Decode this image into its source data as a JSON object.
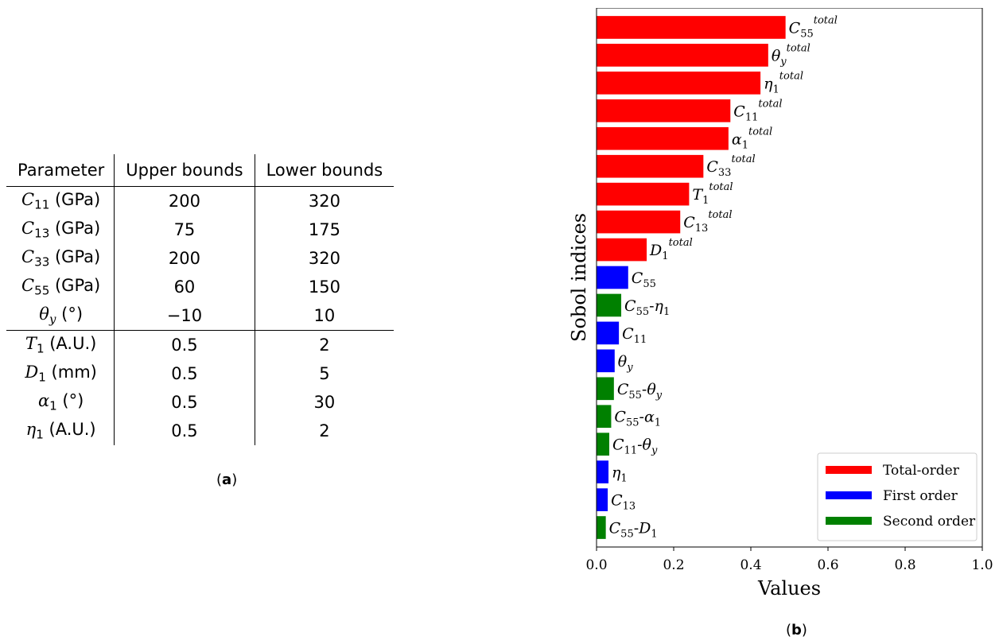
{
  "table": {
    "headers": [
      "Parameter",
      "Upper bounds",
      "Lower bounds"
    ],
    "rows": [
      {
        "sym": "C",
        "sub": "11",
        "unit": " (GPa)",
        "upper": "200",
        "lower": "320"
      },
      {
        "sym": "C",
        "sub": "13",
        "unit": " (GPa)",
        "upper": "75",
        "lower": "175"
      },
      {
        "sym": "C",
        "sub": "33",
        "unit": " (GPa)",
        "upper": "200",
        "lower": "320"
      },
      {
        "sym": "C",
        "sub": "55",
        "unit": " (GPa)",
        "upper": "60",
        "lower": "150"
      },
      {
        "sym": "θ",
        "sub": "y",
        "unit": " (°)",
        "upper": "−10",
        "lower": "10"
      },
      {
        "sym": "T",
        "sub": "1",
        "unit": " (A.U.)",
        "upper": "0.5",
        "lower": "2"
      },
      {
        "sym": "D",
        "sub": "1",
        "unit": " (mm)",
        "upper": "0.5",
        "lower": "5"
      },
      {
        "sym": "α",
        "sub": "1",
        "unit": " (°)",
        "upper": "0.5",
        "lower": "30"
      },
      {
        "sym": "η",
        "sub": "1",
        "unit": " (A.U.)",
        "upper": "0.5",
        "lower": "2"
      }
    ],
    "caption_open": "(",
    "caption_letter": "a",
    "caption_close": ")"
  },
  "chart_data": {
    "type": "bar",
    "orientation": "horizontal",
    "ylabel": "Sobol indices",
    "xlabel": "Values",
    "xlim": [
      0.0,
      1.0
    ],
    "xticks": [
      "0.0",
      "0.2",
      "0.4",
      "0.6",
      "0.8",
      "1.0"
    ],
    "grid": false,
    "legend_position": "bottom-right",
    "series": [
      {
        "name": "Total-order",
        "color": "#ff0000"
      },
      {
        "name": "First order",
        "color": "#0000ff"
      },
      {
        "name": "Second order",
        "color": "#008000"
      }
    ],
    "bars": [
      {
        "base": "C",
        "sub": "55",
        "sup": "total",
        "value": 0.49,
        "series": "Total-order"
      },
      {
        "base": "θ",
        "sub": "y",
        "sup": "total",
        "value": 0.445,
        "series": "Total-order"
      },
      {
        "base": "η",
        "sub": "1",
        "sup": "total",
        "value": 0.425,
        "series": "Total-order"
      },
      {
        "base": "C",
        "sub": "11",
        "sup": "total",
        "value": 0.347,
        "series": "Total-order"
      },
      {
        "base": "α",
        "sub": "1",
        "sup": "total",
        "value": 0.342,
        "series": "Total-order"
      },
      {
        "base": "C",
        "sub": "33",
        "sup": "total",
        "value": 0.277,
        "series": "Total-order"
      },
      {
        "base": "T",
        "sub": "1",
        "sup": "total",
        "value": 0.24,
        "series": "Total-order"
      },
      {
        "base": "C",
        "sub": "13",
        "sup": "total",
        "value": 0.217,
        "series": "Total-order"
      },
      {
        "base": "D",
        "sub": "1",
        "sup": "total",
        "value": 0.13,
        "series": "Total-order"
      },
      {
        "base": "C",
        "sub": "55",
        "sup": "",
        "value": 0.082,
        "series": "First order"
      },
      {
        "base": "C",
        "sub": "55",
        "tail": "-η",
        "tailsub": "1",
        "value": 0.064,
        "series": "Second order"
      },
      {
        "base": "C",
        "sub": "11",
        "sup": "",
        "value": 0.058,
        "series": "First order"
      },
      {
        "base": "θ",
        "sub": "y",
        "sup": "",
        "value": 0.047,
        "series": "First order"
      },
      {
        "base": "C",
        "sub": "55",
        "tail": "-θ",
        "tailsub": "y",
        "value": 0.045,
        "series": "Second order"
      },
      {
        "base": "C",
        "sub": "55",
        "tail": "-α",
        "tailsub": "1",
        "value": 0.038,
        "series": "Second order"
      },
      {
        "base": "C",
        "sub": "11",
        "tail": "-θ",
        "tailsub": "y",
        "value": 0.033,
        "series": "Second order"
      },
      {
        "base": "η",
        "sub": "1",
        "sup": "",
        "value": 0.031,
        "series": "First order"
      },
      {
        "base": "C",
        "sub": "13",
        "sup": "",
        "value": 0.029,
        "series": "First order"
      },
      {
        "base": "C",
        "sub": "55",
        "tail": "-D",
        "tailsub": "1",
        "value": 0.024,
        "series": "Second order"
      }
    ],
    "caption_open": "(",
    "caption_letter": "b",
    "caption_close": ")"
  }
}
